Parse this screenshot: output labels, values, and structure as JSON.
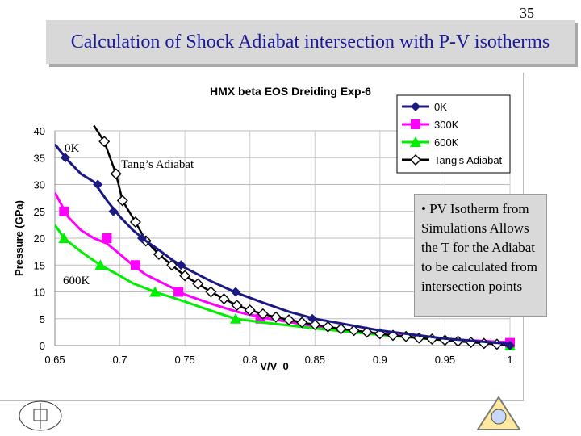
{
  "page_number": "35",
  "slide_title": "Calculation of Shock Adiabat intersection with P-V isotherms",
  "callout_text": "• PV Isotherm from Simulations Allows the T for the Adiabat to be calculated from intersection points",
  "annotations": [
    "0K",
    "600K",
    "Tang’s Adiabat"
  ],
  "colors": {
    "0K": "#1a1a80",
    "300K": "#ff00ff",
    "600K": "#00ee00",
    "adiabat": "#000000",
    "title": "#1a1a99"
  },
  "chart_data": {
    "type": "line",
    "title": "HMX beta EOS Dreiding Exp-6",
    "xlabel": "V/V_0",
    "ylabel": "Pressure (GPa)",
    "xlim": [
      0.65,
      1.0
    ],
    "ylim": [
      0,
      40
    ],
    "xticks": [
      "0.65",
      "0.7",
      "0.75",
      "0.8",
      "0.85",
      "0.9",
      "0.95",
      "1"
    ],
    "yticks": [
      "0",
      "5",
      "10",
      "15",
      "20",
      "25",
      "30",
      "35",
      "40"
    ],
    "grid": true,
    "legend_position": "top-right",
    "series": [
      {
        "name": "0K",
        "color": "#1a1a80",
        "marker": "diamond",
        "x": [
          0.658,
          0.683,
          0.695,
          0.717,
          0.747,
          0.789,
          0.848,
          1.0
        ],
        "y": [
          35,
          30,
          25,
          20,
          15,
          10,
          5,
          0
        ],
        "curve": [
          [
            0.65,
            37.5
          ],
          [
            0.66,
            34.5
          ],
          [
            0.67,
            32
          ],
          [
            0.68,
            30.5
          ],
          [
            0.69,
            27
          ],
          [
            0.7,
            24
          ],
          [
            0.71,
            21.5
          ],
          [
            0.72,
            19.5
          ],
          [
            0.73,
            17.8
          ],
          [
            0.74,
            16
          ],
          [
            0.75,
            14.5
          ],
          [
            0.77,
            12
          ],
          [
            0.79,
            9.8
          ],
          [
            0.81,
            8
          ],
          [
            0.83,
            6.3
          ],
          [
            0.85,
            5
          ],
          [
            0.9,
            2.8
          ],
          [
            0.95,
            1.3
          ],
          [
            1.0,
            0.3
          ]
        ]
      },
      {
        "name": "300K",
        "color": "#ff00ff",
        "marker": "square",
        "x": [
          0.657,
          0.69,
          0.712,
          0.745,
          0.808,
          1.0
        ],
        "y": [
          25,
          20,
          15,
          10,
          5,
          0.5
        ],
        "curve": [
          [
            0.65,
            28.5
          ],
          [
            0.66,
            24
          ],
          [
            0.67,
            21.5
          ],
          [
            0.68,
            20
          ],
          [
            0.69,
            19
          ],
          [
            0.7,
            17
          ],
          [
            0.71,
            15
          ],
          [
            0.72,
            13.2
          ],
          [
            0.73,
            12
          ],
          [
            0.74,
            10.8
          ],
          [
            0.75,
            9.5
          ],
          [
            0.77,
            7.8
          ],
          [
            0.79,
            6.3
          ],
          [
            0.81,
            5.2
          ],
          [
            0.85,
            3.6
          ],
          [
            0.9,
            2.2
          ],
          [
            0.95,
            1.2
          ],
          [
            1.0,
            0.6
          ]
        ]
      },
      {
        "name": "600K",
        "color": "#00ee00",
        "marker": "triangle",
        "x": [
          0.657,
          0.685,
          0.727,
          0.789,
          1.0
        ],
        "y": [
          20,
          15,
          10,
          5,
          0
        ],
        "curve": [
          [
            0.65,
            22.5
          ],
          [
            0.657,
            20
          ],
          [
            0.67,
            17.5
          ],
          [
            0.685,
            15
          ],
          [
            0.7,
            13
          ],
          [
            0.71,
            11.6
          ],
          [
            0.727,
            10
          ],
          [
            0.75,
            8.2
          ],
          [
            0.77,
            6.5
          ],
          [
            0.789,
            5
          ],
          [
            0.81,
            4.3
          ],
          [
            0.85,
            3.2
          ],
          [
            0.9,
            2
          ],
          [
            0.95,
            1
          ],
          [
            1.0,
            0.3
          ]
        ]
      },
      {
        "name": "Tang's Adiabat",
        "color": "#000000",
        "marker": "open-diamond",
        "x": [
          0.688,
          0.697,
          0.702,
          0.712,
          0.72,
          0.73,
          0.74,
          0.75,
          0.76,
          0.77,
          0.78,
          0.79,
          0.8,
          0.81,
          0.82,
          0.83,
          0.84,
          0.85,
          0.86,
          0.87,
          0.88,
          0.89,
          0.9,
          0.91,
          0.92,
          0.93,
          0.94,
          0.95,
          0.96,
          0.97,
          0.98,
          0.99
        ],
        "y": [
          38,
          32,
          27,
          23,
          19.5,
          17,
          15,
          13,
          11.5,
          10,
          8.7,
          7.5,
          6.6,
          5.9,
          5.3,
          4.8,
          4.3,
          3.9,
          3.5,
          3.1,
          2.8,
          2.5,
          2.2,
          1.9,
          1.7,
          1.4,
          1.2,
          1.0,
          0.8,
          0.6,
          0.4,
          0.25
        ],
        "curve": [
          [
            0.68,
            41
          ],
          [
            0.688,
            38
          ],
          [
            0.697,
            32
          ],
          [
            0.702,
            27
          ],
          [
            0.712,
            23
          ],
          [
            0.72,
            19.5
          ],
          [
            0.73,
            17
          ],
          [
            0.74,
            15
          ],
          [
            0.75,
            13
          ],
          [
            0.76,
            11.5
          ],
          [
            0.77,
            10
          ],
          [
            0.78,
            8.7
          ],
          [
            0.79,
            7.5
          ],
          [
            0.8,
            6.6
          ],
          [
            0.81,
            5.9
          ],
          [
            0.82,
            5.3
          ],
          [
            0.83,
            4.8
          ],
          [
            0.84,
            4.3
          ],
          [
            0.85,
            3.9
          ],
          [
            0.87,
            3.1
          ],
          [
            0.89,
            2.5
          ],
          [
            0.91,
            1.9
          ],
          [
            0.93,
            1.4
          ],
          [
            0.95,
            1.0
          ],
          [
            0.97,
            0.6
          ],
          [
            0.99,
            0.25
          ],
          [
            1.0,
            0.1
          ]
        ]
      }
    ]
  }
}
